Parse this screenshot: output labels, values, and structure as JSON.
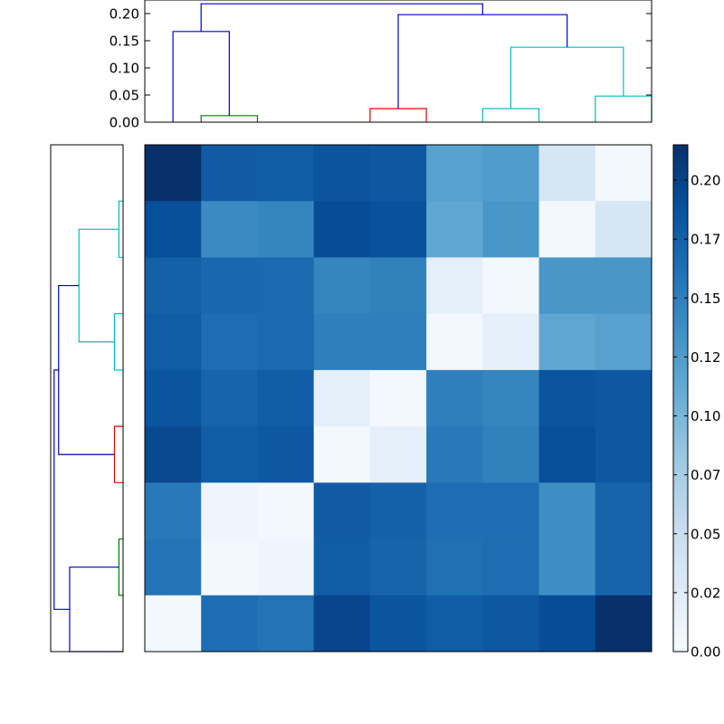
{
  "chart_data": [
    {
      "type": "dendrogram",
      "orientation": "top",
      "ylim": [
        0,
        0.225
      ],
      "yticks": [
        0.0,
        0.05,
        0.1,
        0.15,
        0.2
      ],
      "ytick_labels": [
        "0.00",
        "0.05",
        "0.10",
        "0.15",
        "0.20"
      ],
      "colors": {
        "blue": "#0000cc",
        "green": "#008000",
        "red": "#ee0000",
        "cyan": "#00bfbf"
      },
      "links": [
        {
          "x1": 0.5,
          "x2": 1.5,
          "h1": 0.0,
          "h2": 0.0,
          "h": 0.012,
          "color": "green"
        },
        {
          "x1": 0.0,
          "x2": 1.0,
          "h1": 0.0,
          "h2": 0.012,
          "h": 0.167,
          "color": "blue"
        },
        {
          "x1": 3.5,
          "x2": 4.5,
          "h1": 0.0,
          "h2": 0.0,
          "h": 0.025,
          "color": "red"
        },
        {
          "x1": 5.5,
          "x2": 6.5,
          "h1": 0.0,
          "h2": 0.0,
          "h": 0.025,
          "color": "cyan"
        },
        {
          "x1": 7.5,
          "x2": 8.5,
          "h1": 0.0,
          "h2": 0.0,
          "h": 0.048,
          "color": "cyan"
        },
        {
          "x1": 6.0,
          "x2": 8.0,
          "h1": 0.025,
          "h2": 0.048,
          "h": 0.138,
          "color": "cyan"
        },
        {
          "x1": 4.0,
          "x2": 7.0,
          "h1": 0.025,
          "h2": 0.138,
          "h": 0.198,
          "color": "blue"
        },
        {
          "x1": 0.5,
          "x2": 5.5,
          "h1": 0.167,
          "h2": 0.198,
          "h": 0.218,
          "color": "blue"
        }
      ]
    },
    {
      "type": "dendrogram",
      "orientation": "left",
      "hlim": [
        0,
        0.21
      ],
      "colors": {
        "blue": "#0000cc",
        "green": "#008000",
        "red": "#ee0000",
        "cyan": "#00bfbf"
      },
      "links": [
        {
          "y1": 0.5,
          "y2": 1.5,
          "h1": 0.0,
          "h2": 0.0,
          "h": 0.012,
          "color": "cyan"
        },
        {
          "y1": 2.5,
          "y2": 3.5,
          "h1": 0.0,
          "h2": 0.0,
          "h": 0.025,
          "color": "cyan"
        },
        {
          "y1": 1.0,
          "y2": 3.0,
          "h1": 0.012,
          "h2": 0.025,
          "h": 0.128,
          "color": "cyan"
        },
        {
          "y1": 4.5,
          "y2": 5.5,
          "h1": 0.0,
          "h2": 0.0,
          "h": 0.025,
          "color": "red"
        },
        {
          "y1": 2.0,
          "y2": 5.0,
          "h1": 0.128,
          "h2": 0.025,
          "h": 0.187,
          "color": "blue"
        },
        {
          "y1": 6.5,
          "y2": 7.5,
          "h1": 0.0,
          "h2": 0.0,
          "h": 0.012,
          "color": "green"
        },
        {
          "y1": 7.0,
          "y2": 8.5,
          "h1": 0.012,
          "h2": 0.0,
          "h": 0.155,
          "color": "blue"
        },
        {
          "y1": 3.5,
          "y2": 7.75,
          "h1": 0.187,
          "h2": 0.155,
          "h": 0.2,
          "color": "blue"
        }
      ]
    },
    {
      "type": "heatmap",
      "rows": 9,
      "cols": 9,
      "vmin": 0.0,
      "vmax": 0.215,
      "colormap": "Blues",
      "values": [
        [
          0.215,
          0.18,
          0.178,
          0.185,
          0.182,
          0.12,
          0.125,
          0.035,
          0.005
        ],
        [
          0.19,
          0.14,
          0.145,
          0.192,
          0.188,
          0.115,
          0.13,
          0.005,
          0.035
        ],
        [
          0.175,
          0.17,
          0.168,
          0.145,
          0.148,
          0.02,
          0.005,
          0.13,
          0.13
        ],
        [
          0.178,
          0.165,
          0.168,
          0.15,
          0.15,
          0.005,
          0.02,
          0.115,
          0.12
        ],
        [
          0.185,
          0.172,
          0.178,
          0.02,
          0.005,
          0.15,
          0.145,
          0.185,
          0.182
        ],
        [
          0.195,
          0.178,
          0.182,
          0.005,
          0.02,
          0.155,
          0.148,
          0.19,
          0.182
        ],
        [
          0.155,
          0.01,
          0.005,
          0.18,
          0.175,
          0.165,
          0.165,
          0.138,
          0.172
        ],
        [
          0.16,
          0.005,
          0.01,
          0.178,
          0.172,
          0.162,
          0.165,
          0.138,
          0.172
        ],
        [
          0.005,
          0.165,
          0.16,
          0.198,
          0.185,
          0.178,
          0.182,
          0.192,
          0.215
        ]
      ],
      "colorbar": {
        "ticks": [
          0.0,
          0.025,
          0.05,
          0.075,
          0.1,
          0.125,
          0.15,
          0.175,
          0.2
        ],
        "tick_labels": [
          "0.00",
          "0.02",
          "0.05",
          "0.07",
          "0.10",
          "0.12",
          "0.15",
          "0.17",
          "0.20"
        ]
      }
    }
  ]
}
